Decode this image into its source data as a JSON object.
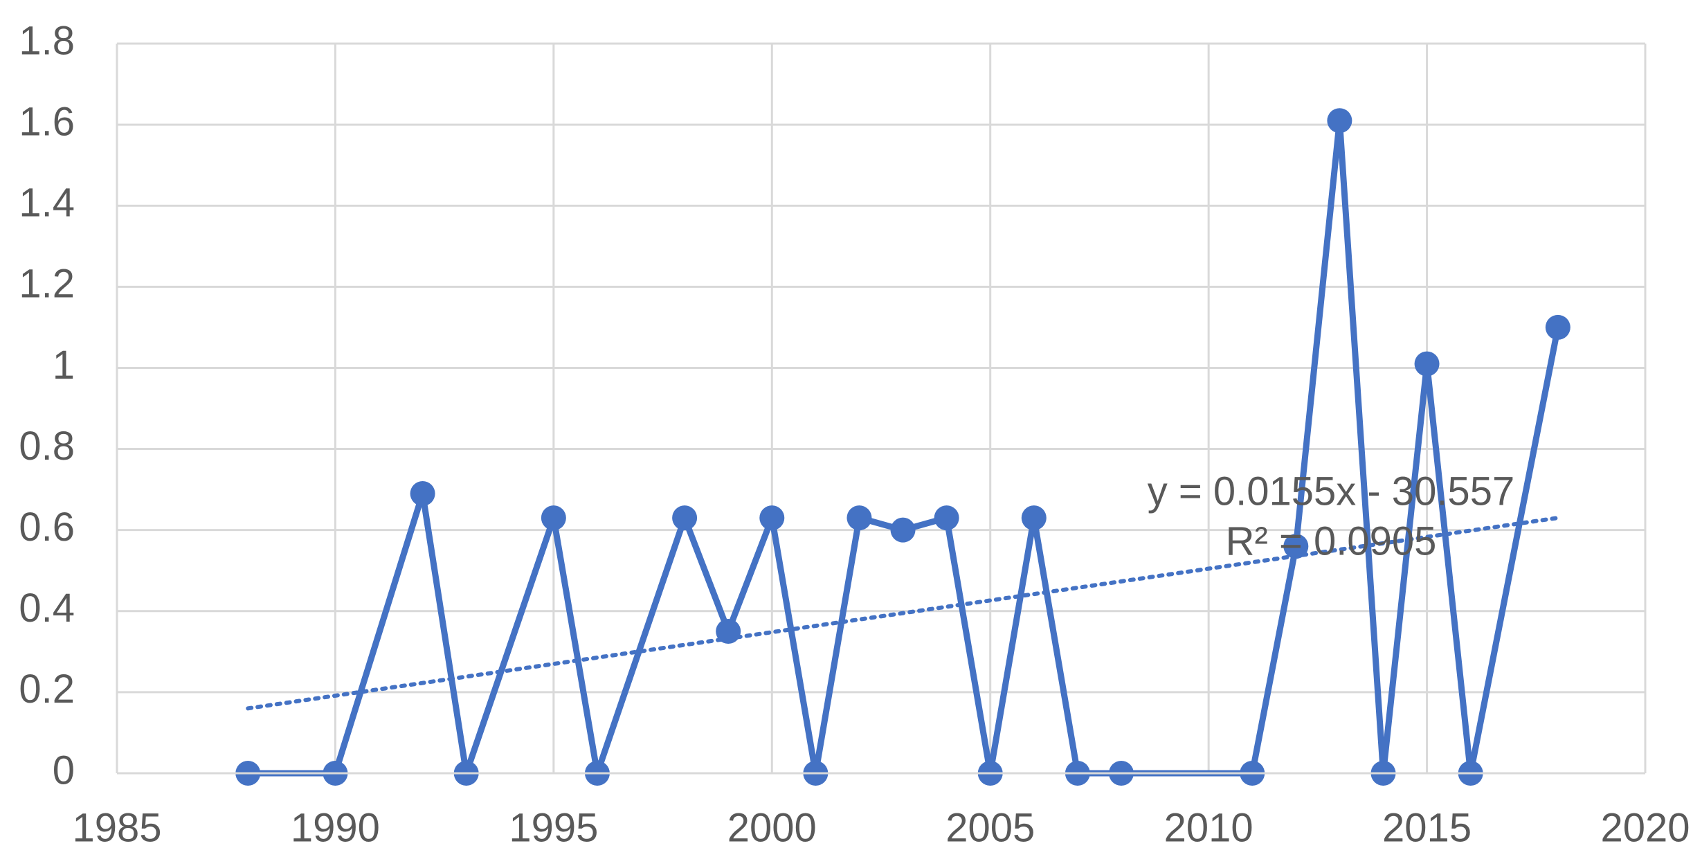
{
  "chart_data": {
    "type": "line",
    "x": [
      1988,
      1990,
      1992,
      1993,
      1995,
      1996,
      1998,
      1999,
      2000,
      2001,
      2002,
      2003,
      2004,
      2005,
      2006,
      2007,
      2008,
      2011,
      2012,
      2013,
      2014,
      2015,
      2016,
      2018
    ],
    "series": [
      {
        "color": "#4472c4",
        "values": [
          0,
          0,
          0.69,
          0,
          0.63,
          0,
          0.63,
          0.35,
          0.63,
          0,
          0.63,
          0.6,
          0.63,
          0,
          0.63,
          0,
          0,
          0,
          0.56,
          1.61,
          0,
          1.01,
          0,
          1.1
        ]
      }
    ],
    "trendline": {
      "x": [
        1988,
        2018
      ],
      "values": [
        0.16,
        0.63
      ],
      "color": "#4472c4",
      "equation": "y = 0.0155x - 30.557",
      "r_squared": "R² = 0.0905"
    },
    "xlim": [
      1985,
      2020
    ],
    "xticks": [
      1985,
      1990,
      1995,
      2000,
      2005,
      2010,
      2015,
      2020
    ],
    "ylim": [
      0,
      1.8
    ],
    "yticks": [
      0,
      0.2,
      0.4,
      0.6,
      0.8,
      1,
      1.2,
      1.4,
      1.6,
      1.8
    ],
    "grid": true
  }
}
